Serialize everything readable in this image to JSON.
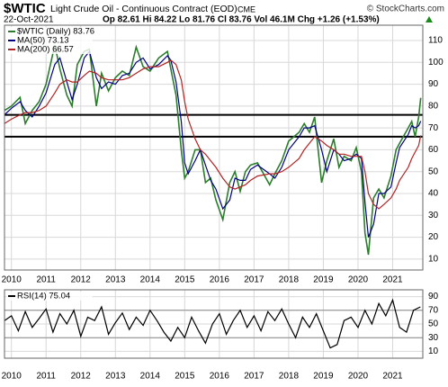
{
  "header": {
    "symbol": "$WTIC",
    "name": "Light Crude Oil - Continuous Contract (EOD)",
    "exchange": "CME",
    "credit": "© StockCharts.com",
    "date": "22-Oct-2021",
    "stats": "Op 82.61 Hi 84.22 Lo 81.76 Cl 83.76 Vol 46.1M Chg +1.26 (+1.53%)"
  },
  "chart_data": [
    {
      "type": "line",
      "x": [
        2009.8,
        2010.0,
        2010.25,
        2010.4,
        2010.6,
        2010.8,
        2011.0,
        2011.25,
        2011.4,
        2011.6,
        2011.75,
        2011.9,
        2012.1,
        2012.25,
        2012.45,
        2012.6,
        2012.8,
        2013.0,
        2013.2,
        2013.4,
        2013.6,
        2013.8,
        2014.0,
        2014.25,
        2014.5,
        2014.6,
        2014.75,
        2014.9,
        2015.0,
        2015.1,
        2015.3,
        2015.45,
        2015.6,
        2015.75,
        2015.9,
        2016.1,
        2016.3,
        2016.45,
        2016.6,
        2016.75,
        2016.9,
        2017.1,
        2017.45,
        2017.6,
        2017.8,
        2018.0,
        2018.3,
        2018.45,
        2018.6,
        2018.75,
        2018.95,
        2019.1,
        2019.3,
        2019.45,
        2019.6,
        2019.8,
        2019.95,
        2020.1,
        2020.2,
        2020.3,
        2020.45,
        2020.6,
        2020.75,
        2020.95,
        2021.1,
        2021.2,
        2021.45,
        2021.55,
        2021.65,
        2021.75,
        2021.81
      ],
      "series": [
        {
          "name": "$WTIC (Daily) 83.76",
          "color": "#2a7d2a",
          "values": [
            78,
            80,
            84,
            72,
            78,
            82,
            90,
            108,
            97,
            85,
            80,
            99,
            105,
            106,
            80,
            95,
            87,
            93,
            96,
            94,
            107,
            98,
            96,
            102,
            105,
            97,
            85,
            60,
            47,
            50,
            60,
            60,
            45,
            47,
            37,
            28,
            45,
            50,
            41,
            50,
            53,
            54,
            44,
            49,
            55,
            64,
            68,
            72,
            68,
            75,
            45,
            55,
            65,
            52,
            57,
            55,
            61,
            50,
            22,
            12,
            38,
            42,
            38,
            48,
            60,
            63,
            70,
            73,
            66,
            75,
            83.76
          ]
        },
        {
          "name": "MA(50) 73.13",
          "color": "#000080",
          "values": [
            76,
            79,
            82,
            78,
            75,
            80,
            86,
            99,
            102,
            91,
            83,
            90,
            102,
            105,
            93,
            88,
            91,
            90,
            94,
            95,
            100,
            102,
            97,
            99,
            103,
            101,
            91,
            73,
            54,
            49,
            55,
            60,
            53,
            46,
            42,
            33,
            37,
            47,
            46,
            46,
            51,
            53,
            49,
            47,
            52,
            60,
            66,
            70,
            70,
            71,
            60,
            50,
            60,
            58,
            55,
            56,
            58,
            56,
            36,
            20,
            26,
            40,
            40,
            43,
            54,
            61,
            67,
            71,
            70,
            71,
            73.13
          ]
        },
        {
          "name": "MA(200) 66.57",
          "color": "#b22222",
          "values": [
            72,
            74,
            76,
            77,
            77,
            78,
            80,
            86,
            90,
            92,
            91,
            91,
            94,
            96,
            95,
            93,
            92,
            92,
            92,
            93,
            95,
            97,
            98,
            98,
            100,
            101,
            99,
            92,
            82,
            74,
            65,
            60,
            58,
            55,
            52,
            47,
            43,
            42,
            43,
            44,
            46,
            48,
            49,
            49,
            50,
            52,
            56,
            60,
            63,
            66,
            64,
            62,
            60,
            58,
            58,
            57,
            57,
            57,
            50,
            40,
            35,
            33,
            35,
            38,
            42,
            46,
            52,
            56,
            59,
            62,
            66.57
          ]
        }
      ],
      "hlines": [
        76,
        66
      ],
      "xlim": [
        2009.8,
        2021.87
      ],
      "xticks": [
        2010,
        2011,
        2012,
        2013,
        2014,
        2015,
        2016,
        2017,
        2018,
        2019,
        2020,
        2021
      ],
      "ylim": [
        5,
        117
      ],
      "yticks": [
        10,
        20,
        30,
        40,
        50,
        60,
        70,
        80,
        90,
        100,
        110
      ],
      "grid": true
    },
    {
      "type": "line",
      "x": [
        2009.8,
        2010.0,
        2010.2,
        2010.4,
        2010.6,
        2010.8,
        2011.0,
        2011.2,
        2011.4,
        2011.6,
        2011.8,
        2012.0,
        2012.2,
        2012.4,
        2012.6,
        2012.8,
        2013.0,
        2013.2,
        2013.4,
        2013.6,
        2013.8,
        2014.0,
        2014.2,
        2014.4,
        2014.6,
        2014.8,
        2015.0,
        2015.2,
        2015.4,
        2015.6,
        2015.8,
        2016.0,
        2016.2,
        2016.4,
        2016.6,
        2016.8,
        2017.0,
        2017.2,
        2017.4,
        2017.6,
        2017.8,
        2018.0,
        2018.2,
        2018.4,
        2018.6,
        2018.8,
        2019.0,
        2019.2,
        2019.4,
        2019.6,
        2019.8,
        2020.0,
        2020.2,
        2020.4,
        2020.6,
        2020.8,
        2021.0,
        2021.2,
        2021.4,
        2021.6,
        2021.8
      ],
      "series": [
        {
          "name": "RSI(14) 75.04",
          "color": "#000000",
          "values": [
            55,
            62,
            40,
            68,
            45,
            58,
            72,
            38,
            65,
            50,
            70,
            32,
            60,
            55,
            75,
            35,
            52,
            66,
            42,
            60,
            48,
            70,
            55,
            38,
            25,
            45,
            30,
            60,
            40,
            22,
            50,
            65,
            35,
            55,
            70,
            45,
            62,
            40,
            68,
            55,
            72,
            50,
            30,
            60,
            45,
            65,
            40,
            15,
            20,
            55,
            60,
            45,
            70,
            50,
            80,
            62,
            85,
            45,
            38,
            70,
            75.04
          ]
        }
      ],
      "hlines": [
        70,
        30
      ],
      "xlim": [
        2009.8,
        2021.87
      ],
      "xticks": [
        2010,
        2011,
        2012,
        2013,
        2014,
        2015,
        2016,
        2017,
        2018,
        2019,
        2020,
        2021
      ],
      "ylim": [
        0,
        100
      ],
      "yticks": [
        10,
        30,
        50,
        70,
        90
      ],
      "grid": true
    }
  ]
}
